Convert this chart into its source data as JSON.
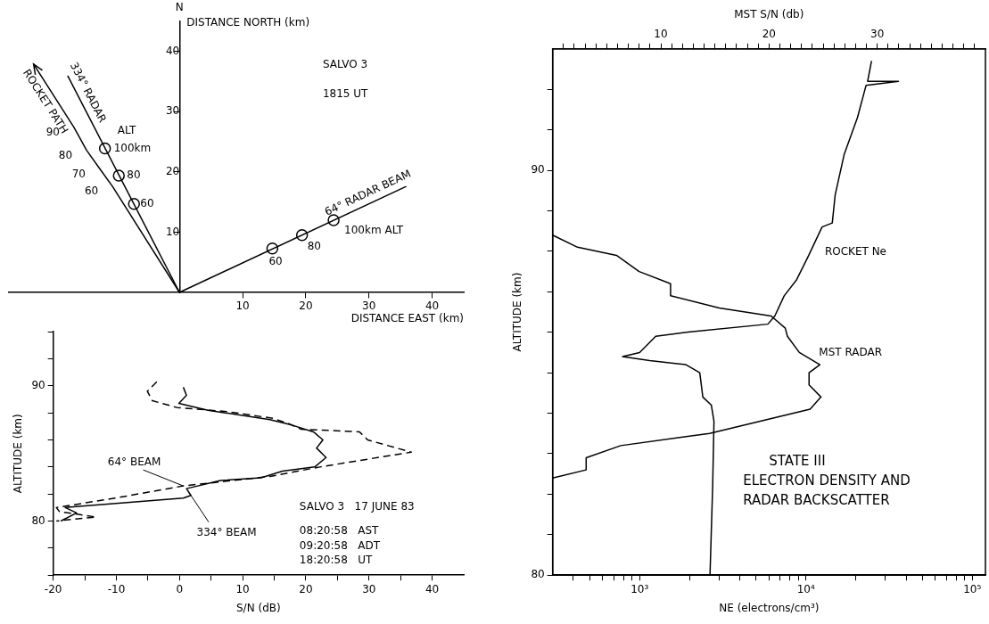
{
  "chart_data": [
    {
      "type": "line",
      "xlabel": "DISTANCE EAST (km)",
      "ylabel": "DISTANCE NORTH (km)",
      "xlim": [
        -27,
        45
      ],
      "ylim": [
        0,
        45
      ],
      "xticks": [
        10,
        20,
        30,
        40
      ],
      "yticks": [
        10,
        20,
        30,
        40
      ],
      "grid": false,
      "legend": false,
      "marker": "none",
      "series": [
        {
          "name": "ROCKET PATH",
          "color": "#000000",
          "x": [
            0,
            -10.6,
            -12.6,
            -14.7,
            -16.7,
            -23.1
          ],
          "values": [
            0,
            17.6,
            20.5,
            23.6,
            27.4,
            37.9
          ]
        },
        {
          "name": "334° RADAR",
          "color": "#000000",
          "x": [
            0,
            -17.7
          ],
          "values": [
            0,
            36.0
          ]
        },
        {
          "name": "64° RADAR BEAM",
          "color": "#000000",
          "x": [
            0,
            35.9
          ],
          "values": [
            0,
            17.6
          ]
        },
        {
          "type": "scatter",
          "marker": "circle",
          "color": "#000000",
          "x": [
            -7.2,
            -9.6,
            -11.8,
            14.7,
            19.4,
            24.4
          ],
          "values": [
            14.7,
            19.4,
            23.9,
            7.3,
            9.5,
            12.0
          ]
        }
      ],
      "annotations": [
        "N",
        "SALVO 3",
        "1815 UT",
        {
          "text": "60",
          "x": -10.6,
          "y": 17.6
        },
        {
          "text": "70",
          "x": -12.6,
          "y": 20.5
        },
        {
          "text": "80",
          "x": -14.7,
          "y": 23.6
        },
        {
          "text": "90",
          "x": -16.7,
          "y": 27.4
        },
        {
          "text": "ALT",
          "x": -11.8,
          "y": 23.9
        },
        {
          "text": "100km",
          "x": -11.8,
          "y": 23.9
        },
        {
          "text": "80",
          "x": -9.6,
          "y": 19.4
        },
        {
          "text": "60",
          "x": -7.2,
          "y": 14.7
        },
        {
          "text": "100km ALT",
          "x": 24.4,
          "y": 12.0
        },
        {
          "text": "80",
          "x": 19.4,
          "y": 9.5
        },
        {
          "text": "60",
          "x": 14.7,
          "y": 7.3
        }
      ]
    },
    {
      "type": "line",
      "xlabel": "S/N (dB)",
      "ylabel": "ALTITUDE (km)",
      "xlim": [
        -20,
        45
      ],
      "ylim": [
        76,
        94
      ],
      "xticks": [
        -20,
        {
          "value": -15,
          "label": null
        },
        -10,
        {
          "value": -5,
          "label": null
        },
        0,
        {
          "value": 5,
          "label": null
        },
        10,
        {
          "value": 15,
          "label": null
        },
        20,
        {
          "value": 25,
          "label": null
        },
        30,
        {
          "value": 35,
          "label": null
        },
        40
      ],
      "yticks": [
        {
          "value": 76,
          "label": null
        },
        {
          "value": 78,
          "label": null
        },
        80,
        {
          "value": 82,
          "label": null
        },
        {
          "value": 84,
          "label": null
        },
        {
          "value": 86,
          "label": null
        },
        {
          "value": 88,
          "label": null
        },
        90,
        {
          "value": 92,
          "label": null
        },
        {
          "value": 94,
          "label": null
        }
      ],
      "grid": false,
      "legend": false,
      "marker": "none",
      "series": [
        {
          "name": "64° BEAM",
          "color": "#000000",
          "line_style": "dashed",
          "x": [
            -3.6,
            -5.1,
            -4.3,
            -0.4,
            7.5,
            14.8,
            17.3,
            19.2,
            28.5,
            29.8,
            36.7,
            22.2,
            14.3,
            0.6,
            -10.2,
            -19.5,
            -19.0,
            -13.2,
            -17.6,
            -19.5
          ],
          "values": [
            90.3,
            89.6,
            88.9,
            88.4,
            88.1,
            87.6,
            87.2,
            86.8,
            86.6,
            86.0,
            85.1,
            84.0,
            83.3,
            82.6,
            81.7,
            81.0,
            80.7,
            80.3,
            80.1,
            80.0
          ]
        },
        {
          "name": "334° BEAM",
          "color": "#000000",
          "line_style": "solid",
          "x": [
            0.6,
            1.1,
            -0.1,
            4.5,
            14.3,
            17.8,
            21.2,
            22.7,
            21.7,
            23.2,
            21.4,
            16.3,
            12.9,
            6.5,
            1.1,
            1.8,
            0.6,
            -18.1,
            -16.3,
            -18.8
          ],
          "values": [
            89.9,
            89.3,
            88.7,
            88.2,
            87.5,
            87.1,
            86.6,
            86.0,
            85.4,
            84.7,
            84.0,
            83.7,
            83.2,
            83.0,
            82.4,
            81.9,
            81.7,
            81.0,
            80.6,
            80.0
          ]
        }
      ],
      "annotations": [
        "SALVO 3   17 JUNE 83",
        "08:20:58   AST",
        "09:20:58   ADT",
        "18:20:58   UT"
      ]
    },
    {
      "type": "line",
      "xlabel": "NE (electrons/cm³)",
      "x2label": "MST S/N (db)",
      "ylabel": "ALTITUDE (km)",
      "log": "x",
      "xlim": [
        300,
        120000
      ],
      "x2lim": [
        0,
        40
      ],
      "ylim": [
        80,
        93
      ],
      "xticks": [
        {
          "value": 400,
          "label": null
        },
        {
          "value": 500,
          "label": null
        },
        {
          "value": 600,
          "label": null
        },
        {
          "value": 700,
          "label": null
        },
        {
          "value": 800,
          "label": null
        },
        {
          "value": 900,
          "label": null
        },
        {
          "value": 1000,
          "label": "10³"
        },
        {
          "value": 2000,
          "label": null
        },
        {
          "value": 3000,
          "label": null
        },
        {
          "value": 4000,
          "label": null
        },
        {
          "value": 5000,
          "label": null
        },
        {
          "value": 6000,
          "label": null
        },
        {
          "value": 7000,
          "label": null
        },
        {
          "value": 8000,
          "label": null
        },
        {
          "value": 9000,
          "label": null
        },
        {
          "value": 10000,
          "label": "10⁴"
        },
        {
          "value": 20000,
          "label": null
        },
        {
          "value": 30000,
          "label": null
        },
        {
          "value": 40000,
          "label": null
        },
        {
          "value": 50000,
          "label": null
        },
        {
          "value": 60000,
          "label": null
        },
        {
          "value": 70000,
          "label": null
        },
        {
          "value": 80000,
          "label": null
        },
        {
          "value": 90000,
          "label": null
        },
        {
          "value": 100000,
          "label": "10⁵"
        }
      ],
      "x2ticks": [
        {
          "value": 1,
          "label": null
        },
        {
          "value": 2,
          "label": null
        },
        {
          "value": 3,
          "label": null
        },
        {
          "value": 4,
          "label": null
        },
        {
          "value": 5,
          "label": null
        },
        {
          "value": 6,
          "label": null
        },
        {
          "value": 7,
          "label": null
        },
        {
          "value": 8,
          "label": null
        },
        {
          "value": 9,
          "label": null
        },
        10,
        {
          "value": 11,
          "label": null
        },
        {
          "value": 12,
          "label": null
        },
        {
          "value": 13,
          "label": null
        },
        {
          "value": 14,
          "label": null
        },
        {
          "value": 15,
          "label": null
        },
        {
          "value": 16,
          "label": null
        },
        {
          "value": 17,
          "label": null
        },
        {
          "value": 18,
          "label": null
        },
        {
          "value": 19,
          "label": null
        },
        20,
        {
          "value": 21,
          "label": null
        },
        {
          "value": 22,
          "label": null
        },
        {
          "value": 23,
          "label": null
        },
        {
          "value": 24,
          "label": null
        },
        {
          "value": 25,
          "label": null
        },
        {
          "value": 26,
          "label": null
        },
        {
          "value": 27,
          "label": null
        },
        {
          "value": 28,
          "label": null
        },
        {
          "value": 29,
          "label": null
        },
        30,
        {
          "value": 31,
          "label": null
        },
        {
          "value": 32,
          "label": null
        },
        {
          "value": 33,
          "label": null
        },
        {
          "value": 34,
          "label": null
        },
        {
          "value": 35,
          "label": null
        },
        {
          "value": 36,
          "label": null
        },
        {
          "value": 37,
          "label": null
        },
        {
          "value": 38,
          "label": null
        },
        {
          "value": 39,
          "label": null
        }
      ],
      "yticks": [
        80,
        {
          "value": 81,
          "label": null
        },
        {
          "value": 82,
          "label": null
        },
        {
          "value": 83,
          "label": null
        },
        {
          "value": 84,
          "label": null
        },
        {
          "value": 85,
          "label": null
        },
        {
          "value": 86,
          "label": null
        },
        {
          "value": 87,
          "label": null
        },
        {
          "value": 88,
          "label": null
        },
        {
          "value": 89,
          "label": null
        },
        90,
        {
          "value": 91,
          "label": null
        },
        {
          "value": 92,
          "label": null
        }
      ],
      "grid": false,
      "legend": false,
      "marker": "none",
      "series": [
        {
          "name": "ROCKET Ne",
          "color": "#000000",
          "x": [
            2650,
            2750,
            2800,
            2700,
            2400,
            2300,
            1900,
            1150,
            790,
            1000,
            1250,
            1900,
            5900,
            6500,
            7400,
            8800,
            10400,
            12500,
            14400,
            15000,
            17000,
            20400,
            23000,
            36000,
            23500,
            24800
          ],
          "values": [
            80.0,
            82.2,
            83.8,
            84.2,
            84.4,
            85.0,
            85.2,
            85.3,
            85.4,
            85.5,
            85.9,
            86.0,
            86.2,
            86.4,
            86.9,
            87.3,
            87.9,
            88.6,
            88.7,
            89.4,
            90.4,
            91.3,
            92.1,
            92.2,
            92.2,
            92.7
          ]
        },
        {
          "name": "MST RADAR",
          "color": "#000000",
          "axis": "x2",
          "x": [
            0,
            3.1,
            3.1,
            6.3,
            14.5,
            23.8,
            24.8,
            23.7,
            23.7,
            24.7,
            22.8,
            21.7,
            21.5,
            20.2,
            15.4,
            10.9,
            10.9,
            8.0,
            5.9,
            2.3,
            0
          ],
          "values": [
            82.4,
            82.6,
            82.9,
            83.2,
            83.5,
            84.1,
            84.4,
            84.7,
            85.0,
            85.2,
            85.5,
            85.9,
            86.1,
            86.4,
            86.6,
            86.9,
            87.2,
            87.5,
            87.9,
            88.1,
            88.4
          ]
        }
      ],
      "annotations": [
        "STATE III",
        "ELECTRON DENSITY AND",
        "RADAR BACKSCATTER"
      ]
    }
  ]
}
